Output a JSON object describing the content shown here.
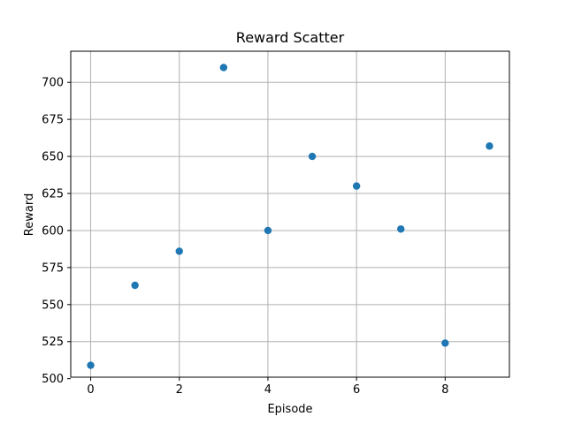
{
  "chart_data": {
    "type": "scatter",
    "title": "Reward Scatter",
    "xlabel": "Episode",
    "ylabel": "Reward",
    "x": [
      0,
      1,
      2,
      3,
      4,
      5,
      6,
      7,
      8,
      9
    ],
    "y": [
      509,
      563,
      586,
      710,
      600,
      650,
      630,
      601,
      524,
      657
    ],
    "xlim": [
      -0.45,
      9.45
    ],
    "ylim": [
      501,
      721
    ],
    "xticks": [
      0,
      2,
      4,
      6,
      8
    ],
    "yticks": [
      500,
      525,
      550,
      575,
      600,
      625,
      650,
      675,
      700
    ],
    "grid": true,
    "colors": {
      "marker": "#1f77b4",
      "grid": "#b0b0b0",
      "axis": "#000000"
    }
  }
}
